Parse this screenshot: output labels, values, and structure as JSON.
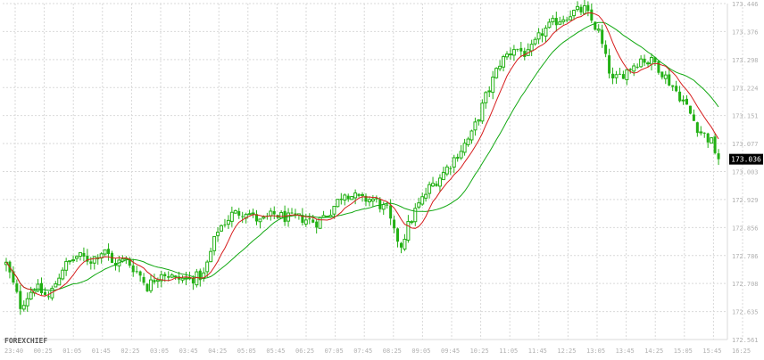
{
  "watermark": "FOREXCHIEF",
  "colors": {
    "background": "#ffffff",
    "grid": "#d9d9d9",
    "candle": "#22b014",
    "ma_fast": "#d61c1c",
    "ma_slow": "#12a812",
    "axis_text": "#b0b0b0",
    "price_tag_bg": "#000000",
    "price_tag_text": "#ffffff"
  },
  "chart_data": {
    "type": "candlestick",
    "title": "",
    "grid": true,
    "ylim": [
      172.561,
      173.446
    ],
    "y_ticks": [
      "173.446",
      "173.376",
      "173.298",
      "173.224",
      "173.151",
      "173.077",
      "173.003",
      "172.929",
      "172.856",
      "172.786",
      "172.708",
      "172.635",
      "172.561"
    ],
    "x_ticks": [
      "23:40",
      "00:25",
      "01:05",
      "01:45",
      "02:25",
      "03:05",
      "03:45",
      "04:25",
      "05:05",
      "05:45",
      "06:25",
      "07:05",
      "07:45",
      "08:25",
      "09:05",
      "09:45",
      "10:25",
      "11:05",
      "11:45",
      "12:25",
      "13:05",
      "13:45",
      "14:25",
      "15:05",
      "15:45",
      "16:25"
    ],
    "current_price": "173.036",
    "price_anchors": [
      [
        0,
        172.76
      ],
      [
        4,
        172.65
      ],
      [
        8,
        172.7
      ],
      [
        12,
        172.67
      ],
      [
        16,
        172.75
      ],
      [
        20,
        172.78
      ],
      [
        24,
        172.77
      ],
      [
        28,
        172.8
      ],
      [
        30,
        172.76
      ],
      [
        34,
        172.77
      ],
      [
        38,
        172.73
      ],
      [
        40,
        172.7
      ],
      [
        44,
        172.74
      ],
      [
        48,
        172.72
      ],
      [
        52,
        172.72
      ],
      [
        56,
        172.73
      ],
      [
        60,
        172.85
      ],
      [
        64,
        172.89
      ],
      [
        68,
        172.9
      ],
      [
        72,
        172.87
      ],
      [
        76,
        172.89
      ],
      [
        80,
        172.88
      ],
      [
        84,
        172.88
      ],
      [
        88,
        172.87
      ],
      [
        92,
        172.9
      ],
      [
        96,
        172.95
      ],
      [
        100,
        172.93
      ],
      [
        104,
        172.93
      ],
      [
        108,
        172.9
      ],
      [
        110,
        172.84
      ],
      [
        112,
        172.81
      ],
      [
        114,
        172.86
      ],
      [
        116,
        172.9
      ],
      [
        120,
        172.96
      ],
      [
        124,
        173.0
      ],
      [
        128,
        173.05
      ],
      [
        132,
        173.1
      ],
      [
        136,
        173.2
      ],
      [
        140,
        173.29
      ],
      [
        144,
        173.33
      ],
      [
        148,
        173.31
      ],
      [
        152,
        173.37
      ],
      [
        156,
        173.4
      ],
      [
        160,
        173.42
      ],
      [
        164,
        173.43
      ],
      [
        168,
        173.37
      ],
      [
        170,
        173.3
      ],
      [
        172,
        173.24
      ],
      [
        176,
        173.27
      ],
      [
        180,
        173.3
      ],
      [
        184,
        173.29
      ],
      [
        188,
        173.24
      ],
      [
        192,
        173.19
      ],
      [
        196,
        173.12
      ],
      [
        200,
        173.08
      ],
      [
        202,
        173.036
      ]
    ],
    "series": [
      {
        "name": "",
        "kind": "moving-average-fast",
        "color": "#d61c1c"
      },
      {
        "name": "",
        "kind": "moving-average-slow",
        "color": "#12a812"
      }
    ]
  }
}
